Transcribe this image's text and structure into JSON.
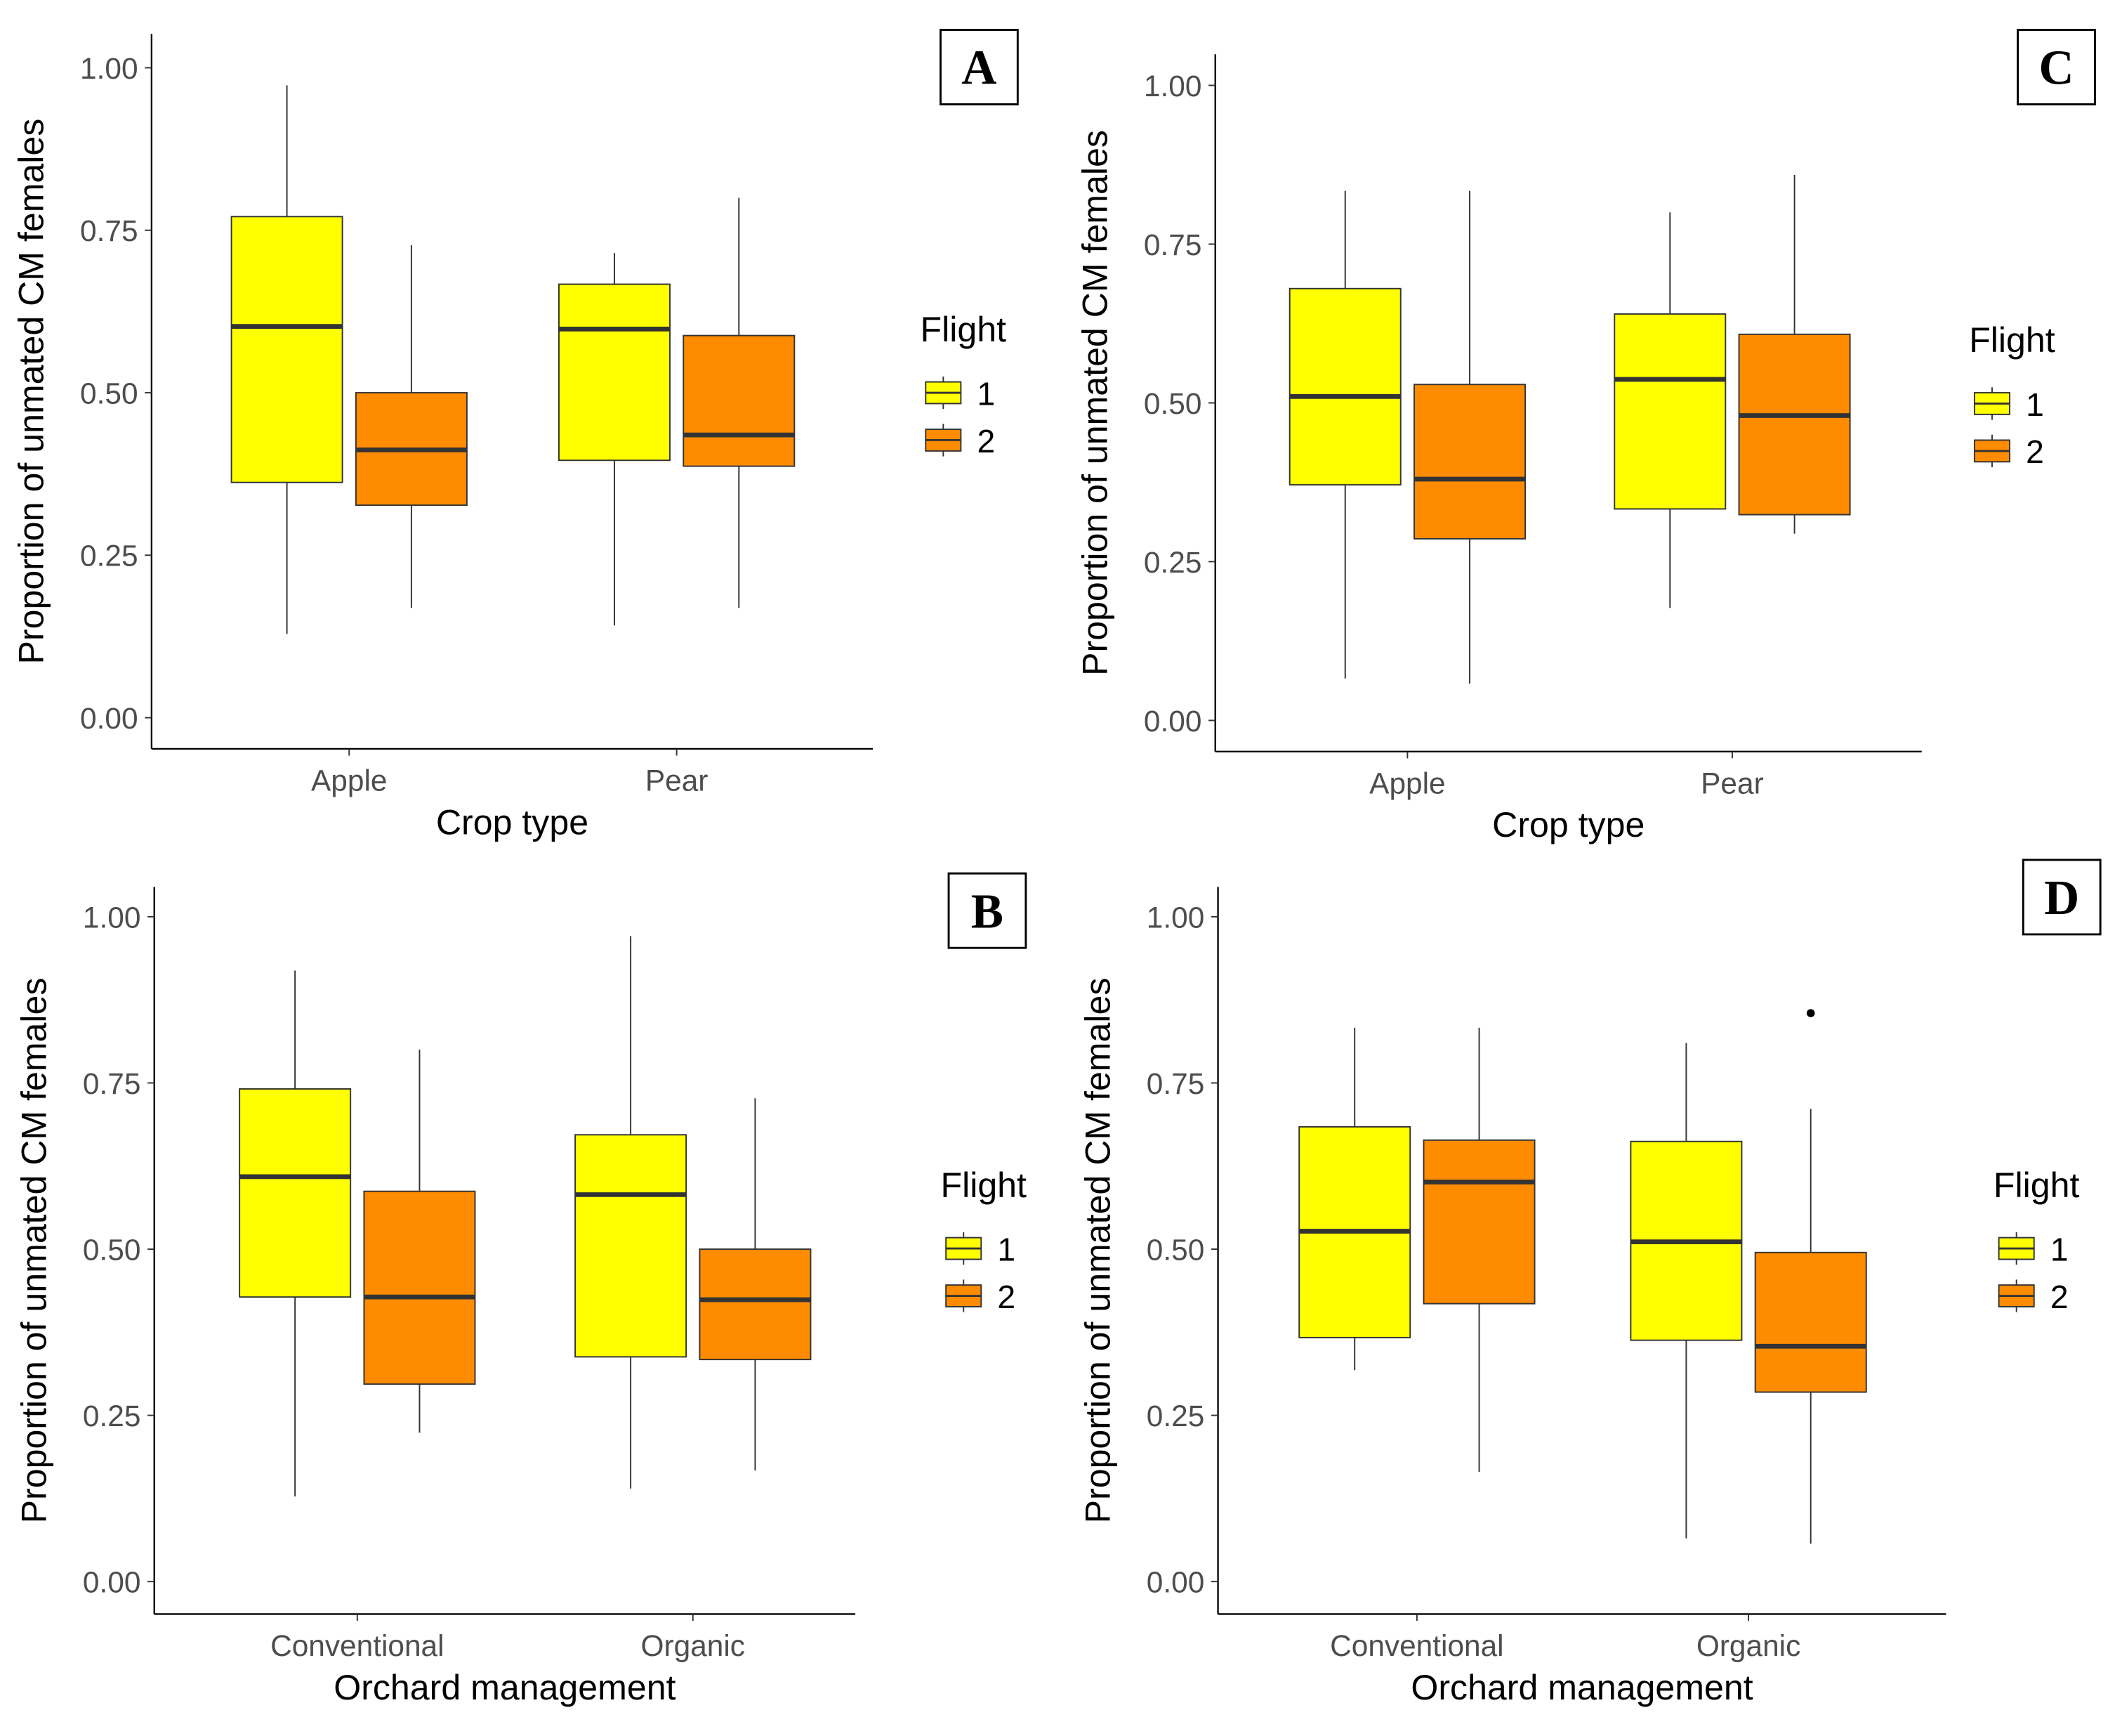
{
  "colors": {
    "flight_1": "#FFFF00",
    "flight_2": "#FF8C00",
    "median": "#333333"
  },
  "chart_data": [
    {
      "panel": "A",
      "type": "boxplot",
      "xlabel": "Crop type",
      "ylabel": "Proportion of unmated CM females",
      "ylim": [
        0,
        1
      ],
      "yticks": [
        "0.00",
        "0.25",
        "0.50",
        "0.75",
        "1.00"
      ],
      "categories": [
        "Apple",
        "Pear"
      ],
      "legend": {
        "title": "Flight",
        "entries": [
          "1",
          "2"
        ],
        "placement": "right"
      },
      "series": [
        {
          "name": "1",
          "boxes": [
            {
              "min": 0.129,
              "q1": 0.362,
              "median": 0.602,
              "q3": 0.771,
              "max": 0.973
            },
            {
              "min": 0.142,
              "q1": 0.396,
              "median": 0.598,
              "q3": 0.667,
              "max": 0.715
            }
          ]
        },
        {
          "name": "2",
          "boxes": [
            {
              "min": 0.169,
              "q1": 0.327,
              "median": 0.412,
              "q3": 0.5,
              "max": 0.727
            },
            {
              "min": 0.169,
              "q1": 0.387,
              "median": 0.435,
              "q3": 0.588,
              "max": 0.8
            }
          ]
        }
      ],
      "outliers": []
    },
    {
      "panel": "C",
      "type": "boxplot",
      "xlabel": "Crop type",
      "ylabel": "Proportion of unmated CM females",
      "ylim": [
        0,
        1
      ],
      "yticks": [
        "0.00",
        "0.25",
        "0.50",
        "0.75",
        "1.00"
      ],
      "categories": [
        "Apple",
        "Pear"
      ],
      "legend": {
        "title": "Flight",
        "entries": [
          "1",
          "2"
        ],
        "placement": "right"
      },
      "series": [
        {
          "name": "1",
          "boxes": [
            {
              "min": 0.066,
              "q1": 0.371,
              "median": 0.51,
              "q3": 0.68,
              "max": 0.834
            },
            {
              "min": 0.177,
              "q1": 0.333,
              "median": 0.537,
              "q3": 0.64,
              "max": 0.8
            }
          ]
        },
        {
          "name": "2",
          "boxes": [
            {
              "min": 0.058,
              "q1": 0.286,
              "median": 0.38,
              "q3": 0.529,
              "max": 0.834
            },
            {
              "min": 0.294,
              "q1": 0.324,
              "median": 0.48,
              "q3": 0.608,
              "max": 0.859
            }
          ]
        }
      ],
      "outliers": []
    },
    {
      "panel": "B",
      "type": "boxplot",
      "xlabel": "Orchard management",
      "ylabel": "Proportion of unmated CM females",
      "ylim": [
        0,
        1
      ],
      "yticks": [
        "0.00",
        "0.25",
        "0.50",
        "0.75",
        "1.00"
      ],
      "categories": [
        "Conventional",
        "Organic"
      ],
      "legend": {
        "title": "Flight",
        "entries": [
          "1",
          "2"
        ],
        "placement": "right"
      },
      "series": [
        {
          "name": "1",
          "boxes": [
            {
              "min": 0.128,
              "q1": 0.428,
              "median": 0.609,
              "q3": 0.741,
              "max": 0.919
            },
            {
              "min": 0.14,
              "q1": 0.338,
              "median": 0.582,
              "q3": 0.672,
              "max": 0.971
            }
          ]
        },
        {
          "name": "2",
          "boxes": [
            {
              "min": 0.224,
              "q1": 0.297,
              "median": 0.428,
              "q3": 0.587,
              "max": 0.8
            },
            {
              "min": 0.167,
              "q1": 0.334,
              "median": 0.424,
              "q3": 0.5,
              "max": 0.727
            }
          ]
        }
      ],
      "outliers": []
    },
    {
      "panel": "D",
      "type": "boxplot",
      "xlabel": "Orchard management",
      "ylabel": "Proportion of unmated CM females",
      "ylim": [
        0,
        1
      ],
      "yticks": [
        "0.00",
        "0.25",
        "0.50",
        "0.75",
        "1.00"
      ],
      "categories": [
        "Conventional",
        "Organic"
      ],
      "legend": {
        "title": "Flight",
        "entries": [
          "1",
          "2"
        ],
        "placement": "right"
      },
      "series": [
        {
          "name": "1",
          "boxes": [
            {
              "min": 0.318,
              "q1": 0.367,
              "median": 0.527,
              "q3": 0.684,
              "max": 0.833
            },
            {
              "min": 0.065,
              "q1": 0.363,
              "median": 0.511,
              "q3": 0.662,
              "max": 0.81
            }
          ]
        },
        {
          "name": "2",
          "boxes": [
            {
              "min": 0.165,
              "q1": 0.418,
              "median": 0.601,
              "q3": 0.664,
              "max": 0.833
            },
            {
              "min": 0.057,
              "q1": 0.285,
              "median": 0.354,
              "q3": 0.495,
              "max": 0.711
            }
          ]
        }
      ],
      "outliers": [
        {
          "category": "Organic",
          "series": "2",
          "value": 0.855
        }
      ]
    }
  ]
}
